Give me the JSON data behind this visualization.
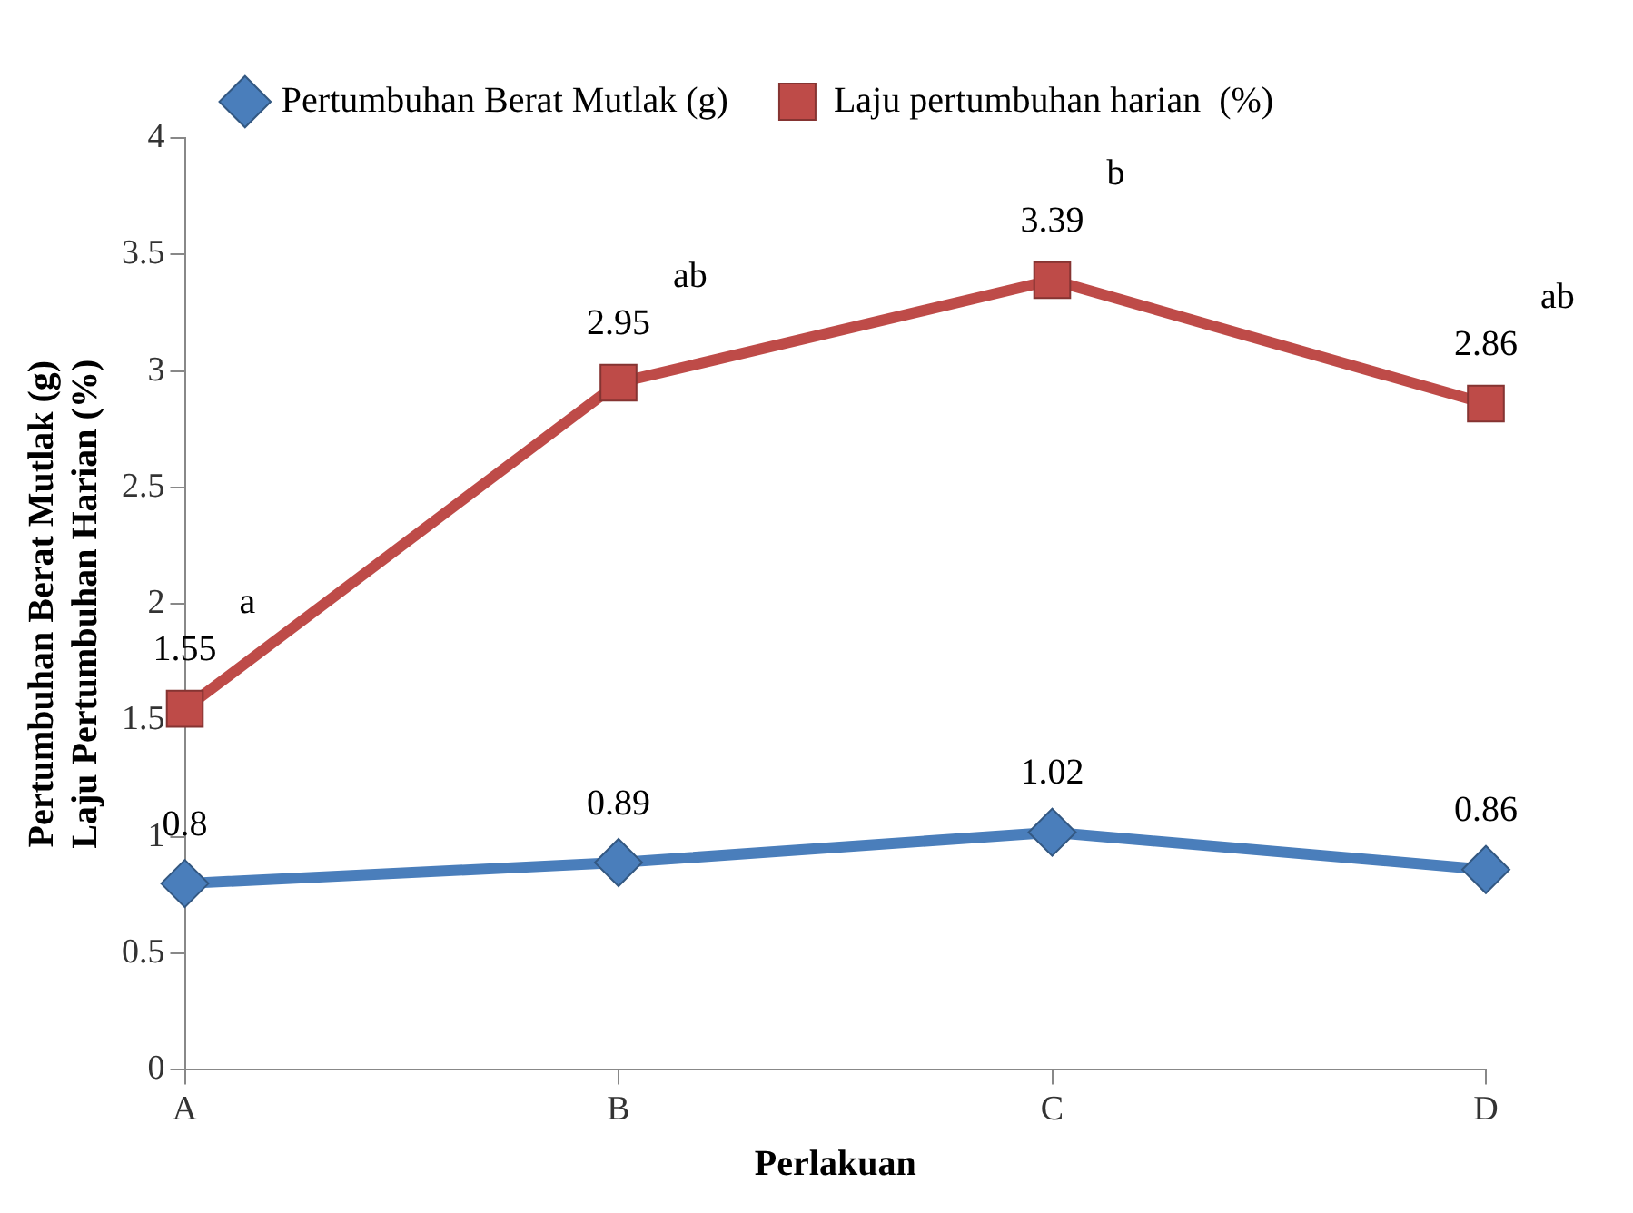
{
  "chart_data": {
    "type": "line",
    "xlabel": "Perlakuan",
    "ylabel": "Pertumbuhan Berat Mutlak (g)\nLaju Pertumbuhan Harian (%)",
    "categories": [
      "A",
      "B",
      "C",
      "D"
    ],
    "series": [
      {
        "name": "Pertumbuhan Berat Mutlak (g)",
        "color": "#4a7ebb",
        "marker": "diamond",
        "values": [
          0.8,
          0.89,
          1.02,
          0.86
        ]
      },
      {
        "name": "Laju pertumbuhan harian  (%)",
        "color": "#be4b48",
        "marker": "square",
        "values": [
          1.55,
          2.95,
          3.39,
          2.86
        ]
      }
    ],
    "ylim": [
      0,
      4
    ],
    "yticks": [
      0,
      0.5,
      1,
      1.5,
      2,
      2.5,
      3,
      3.5,
      4
    ],
    "grid": false,
    "legend": "top",
    "data_labels": true,
    "annotations": [
      "a",
      "ab",
      "b",
      "ab"
    ]
  }
}
